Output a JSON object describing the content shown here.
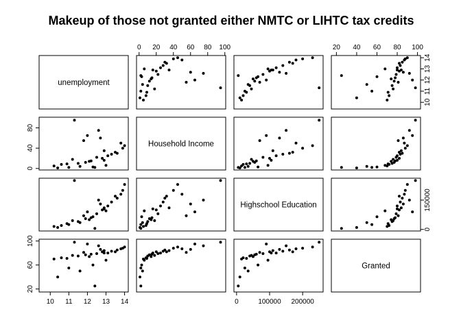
{
  "chart_data": {
    "type": "scatter",
    "plot_kind": "scatterplot-matrix",
    "title": "Makeup of those not granted either NMTC or LIHTC tax credits",
    "variables": [
      "unemployment",
      "Household Income",
      "Highschool Education",
      "Granted"
    ],
    "ranges": {
      "unemployment": [
        9.4,
        14.2
      ],
      "Household Income": [
        -3,
        101
      ],
      "Highschool Education": [
        -8000,
        262000
      ],
      "Granted": [
        15,
        103
      ]
    },
    "ticks": {
      "unemployment": [
        10,
        11,
        12,
        13,
        14
      ],
      "Household Income": [
        0,
        20,
        40,
        60,
        80,
        100
      ],
      "Household Income Left": [
        0,
        40,
        80
      ],
      "Highschool Education": [
        0,
        100000,
        200000
      ],
      "Highschool Education Right": [
        0,
        150000
      ],
      "Granted": [
        20,
        40,
        60,
        80,
        100
      ],
      "Granted Left": [
        20,
        60,
        100
      ]
    },
    "tick_labels": {
      "unemployment": [
        "10",
        "11",
        "12",
        "13",
        "14"
      ],
      "Household Income": [
        "0",
        "20",
        "40",
        "60",
        "80",
        "100"
      ],
      "Household Income Left": [
        "0",
        "40",
        "80"
      ],
      "Highschool Education": [
        "0",
        "100000",
        "200000"
      ],
      "Highschool Education Right": [
        "0",
        "150000"
      ],
      "Granted": [
        "20",
        "40",
        "60",
        "80",
        "100"
      ],
      "Granted Left": [
        "20",
        "60",
        "100"
      ]
    },
    "points": [
      [
        12.8,
        20,
        100000,
        82
      ],
      [
        13.1,
        25,
        120000,
        80
      ],
      [
        12.2,
        15,
        60000,
        78
      ],
      [
        11.5,
        10,
        40000,
        75
      ],
      [
        13.6,
        30,
        160000,
        85
      ],
      [
        10.6,
        8,
        20000,
        72
      ],
      [
        12.9,
        35,
        110000,
        84
      ],
      [
        11.9,
        12,
        55000,
        77
      ],
      [
        13.9,
        40,
        200000,
        88
      ],
      [
        10.2,
        5,
        15000,
        70
      ],
      [
        12.5,
        22,
        80000,
        79
      ],
      [
        11.2,
        18,
        45000,
        76
      ],
      [
        13.3,
        28,
        140000,
        83
      ],
      [
        12.1,
        14,
        50000,
        74
      ],
      [
        10.9,
        9,
        30000,
        71
      ],
      [
        14.0,
        45,
        230000,
        90
      ],
      [
        12.7,
        60,
        130000,
        86
      ],
      [
        11.8,
        55,
        70000,
        81
      ],
      [
        13.0,
        6,
        95000,
        68
      ],
      [
        12.3,
        3,
        65000,
        60
      ],
      [
        11.0,
        2,
        25000,
        55
      ],
      [
        12.6,
        75,
        150000,
        92
      ],
      [
        13.8,
        50,
        180000,
        87
      ],
      [
        10.4,
        1,
        10000,
        40
      ],
      [
        11.6,
        4,
        35000,
        50
      ],
      [
        12.0,
        65,
        90000,
        95
      ],
      [
        13.5,
        32,
        170000,
        82
      ],
      [
        12.4,
        2,
        5000,
        25
      ],
      [
        11.3,
        95,
        250000,
        98
      ],
      [
        12.9,
        16,
        105000,
        80
      ]
    ]
  }
}
